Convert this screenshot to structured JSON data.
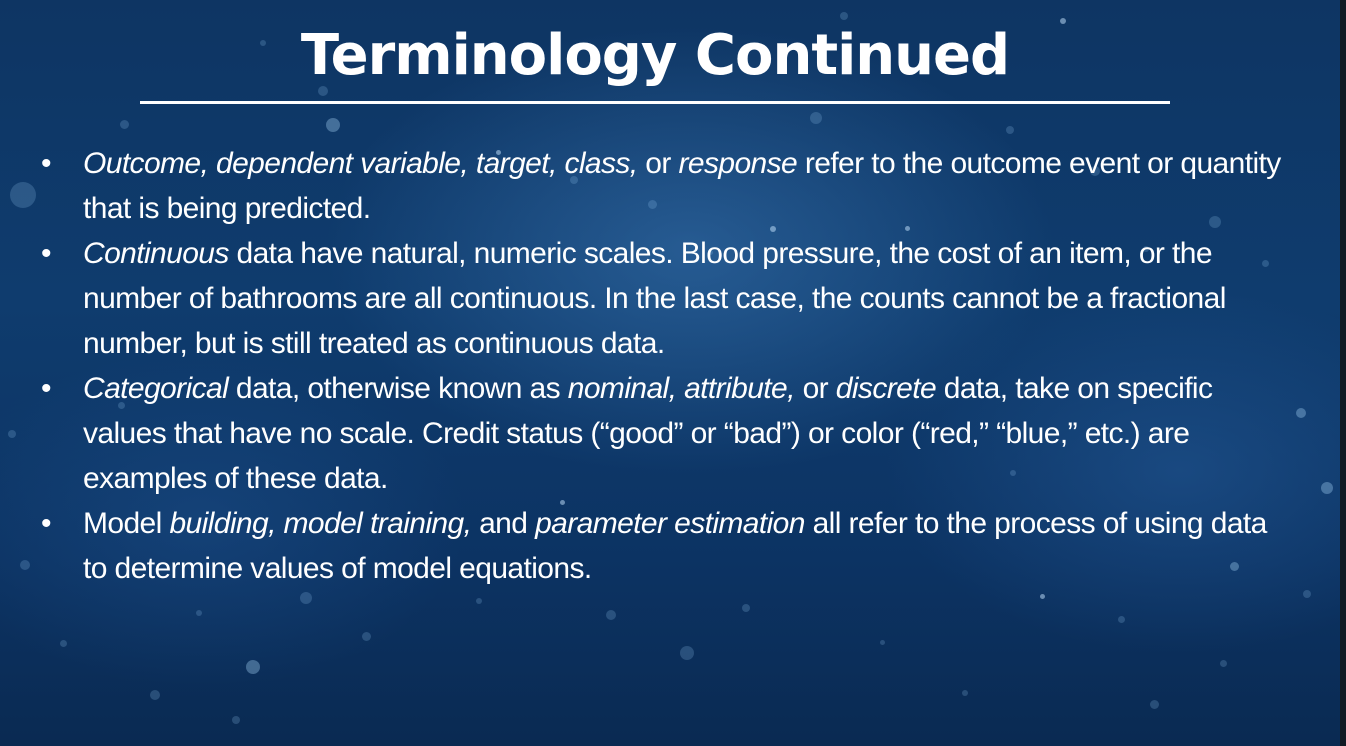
{
  "slide": {
    "title": "Terminology Continued",
    "bullet_glyph": "•",
    "bullets": [
      {
        "segments": [
          {
            "text": "Outcome, dependent variable, target, class,",
            "italic": true
          },
          {
            "text": " or ",
            "italic": false
          },
          {
            "text": "response",
            "italic": true
          },
          {
            "text": " refer to the outcome event or quantity that is being predicted.",
            "italic": false
          }
        ]
      },
      {
        "segments": [
          {
            "text": "Continuous",
            "italic": true
          },
          {
            "text": " data have natural, numeric scales. Blood pressure, the cost of an item, or the number of bathrooms are all continuous. In the last case, the counts cannot be a fractional number, but is still treated as continuous data.",
            "italic": false
          }
        ]
      },
      {
        "segments": [
          {
            "text": "Categorical",
            "italic": true
          },
          {
            "text": " data, otherwise known as ",
            "italic": false
          },
          {
            "text": "nominal, attribute,",
            "italic": true
          },
          {
            "text": " or ",
            "italic": false
          },
          {
            "text": "discrete",
            "italic": true
          },
          {
            "text": " data, take on specific values that have no scale. Credit status (“good” or “bad”) or color (“red,” “blue,” etc.) are examples of these data.",
            "italic": false
          }
        ]
      },
      {
        "segments": [
          {
            "text": "Model ",
            "italic": false
          },
          {
            "text": "building, model training,",
            "italic": true
          },
          {
            "text": " and ",
            "italic": false
          },
          {
            "text": "parameter estimation",
            "italic": true
          },
          {
            "text": " all refer to the process of using data to determine values of model equations.",
            "italic": false
          }
        ]
      }
    ]
  },
  "colors": {
    "background": "#0f3c6e",
    "text": "#ffffff"
  }
}
